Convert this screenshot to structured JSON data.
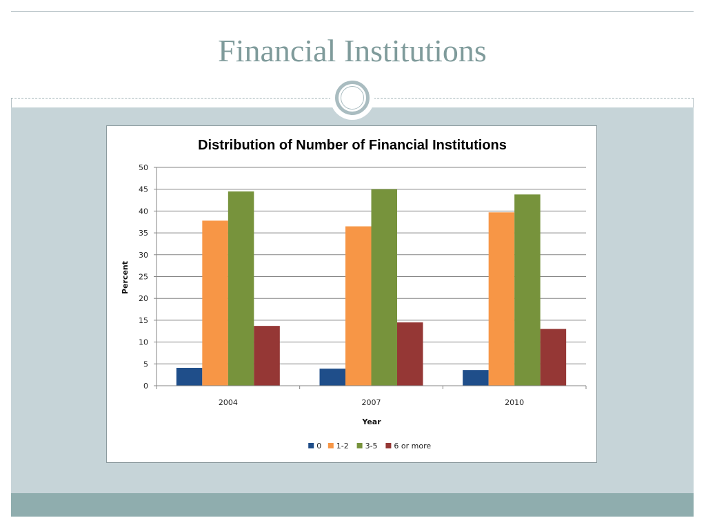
{
  "slide": {
    "title": "Financial Institutions"
  },
  "colors": {
    "title_text": "#7f9b9b",
    "content_band": "#c6d4d8",
    "footer_band": "#8fadae"
  },
  "chart_data": {
    "type": "bar",
    "title": "Distribution of Number of Financial Institutions",
    "xlabel": "Year",
    "ylabel": "Percent",
    "categories": [
      "2004",
      "2007",
      "2010"
    ],
    "ylim": [
      0,
      50
    ],
    "yticks": [
      "0",
      "5",
      "10",
      "15",
      "20",
      "25",
      "30",
      "35",
      "40",
      "45",
      "50"
    ],
    "grid": true,
    "legend_position": "bottom",
    "series": [
      {
        "name": "0",
        "color": "#1f4e8a",
        "values": [
          4.1,
          3.9,
          3.6
        ]
      },
      {
        "name": "1-2",
        "color": "#f79646",
        "values": [
          37.8,
          36.5,
          39.7
        ]
      },
      {
        "name": "3-5",
        "color": "#77933c",
        "values": [
          44.5,
          45.0,
          43.8
        ]
      },
      {
        "name": "6 or more",
        "color": "#953735",
        "values": [
          13.7,
          14.5,
          13.0
        ]
      }
    ]
  }
}
